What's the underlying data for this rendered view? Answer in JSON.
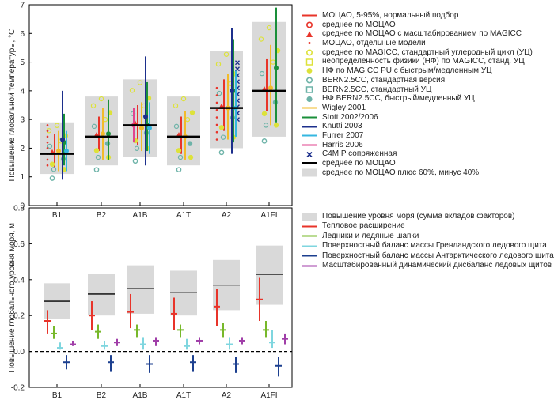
{
  "chart_data": [
    {
      "type": "scatter",
      "title": "",
      "ylabel": "Повышение глобальной температуры, °C",
      "ylim": [
        0,
        7
      ],
      "yticks": [
        0,
        1,
        2,
        3,
        4,
        5,
        6,
        7
      ],
      "categories": [
        "B1",
        "B2",
        "A1B",
        "A1T",
        "A2",
        "A1FI"
      ],
      "mean": [
        1.8,
        2.4,
        2.8,
        2.4,
        3.4,
        4.0
      ],
      "range_low": [
        1.1,
        1.4,
        1.7,
        1.4,
        2.0,
        2.4
      ],
      "range_high": [
        2.9,
        3.8,
        4.4,
        3.8,
        5.4,
        6.4
      ],
      "magicc_5_95": [
        {
          "low": 1.3,
          "high": 2.5
        },
        {
          "low": 1.9,
          "high": 3.1
        },
        {
          "low": 2.1,
          "high": 3.5
        },
        {
          "low": 1.8,
          "high": 3.1
        },
        {
          "low": 2.6,
          "high": 4.4
        },
        {
          "low": 3.3,
          "high": 5.1
        }
      ],
      "series": [
        {
          "name": "Wigley 2001",
          "color": "#f2bb2a",
          "values": [
            {
              "cat": "B1",
              "low": 1.2,
              "high": 2.6,
              "mid": 1.9
            },
            {
              "cat": "B2",
              "low": 1.6,
              "high": 3.4,
              "mid": 2.5
            },
            {
              "cat": "A1B",
              "low": 1.9,
              "high": 3.6,
              "mid": 2.7
            },
            {
              "cat": "A1T",
              "low": 1.6,
              "high": 3.3,
              "mid": 2.4
            },
            {
              "cat": "A2",
              "low": 2.3,
              "high": 4.6,
              "mid": 3.4
            },
            {
              "cat": "A1FI",
              "low": 2.8,
              "high": 5.6,
              "mid": 4.1
            }
          ]
        },
        {
          "name": "Stott 2002/2006",
          "color": "#1a8f3a",
          "values": [
            {
              "cat": "B1",
              "low": 1.4,
              "high": 3.2,
              "mid": 2.2
            },
            {
              "cat": "B2",
              "low": 1.6,
              "high": 3.7,
              "mid": 2.5
            },
            {
              "cat": "A1B",
              "low": 1.9,
              "high": 4.3,
              "mid": 2.8
            },
            {
              "cat": "A2",
              "low": 2.2,
              "high": 5.8,
              "mid": 4.0
            },
            {
              "cat": "A1FI",
              "low": 2.9,
              "high": 6.9,
              "mid": 4.8
            }
          ]
        },
        {
          "name": "Knutti 2003",
          "color": "#1c2f8c",
          "values": [
            {
              "cat": "B1",
              "low": 0.9,
              "high": 4.0,
              "mid": 2.3
            },
            {
              "cat": "A1B",
              "low": 1.4,
              "high": 5.2,
              "mid": 3.1
            },
            {
              "cat": "A2",
              "low": 1.8,
              "high": 6.2,
              "mid": 4.0
            }
          ]
        },
        {
          "name": "Furrer 2007",
          "color": "#35b7e0",
          "values": [
            {
              "cat": "B1",
              "low": 1.2,
              "high": 2.6,
              "mid": 1.9
            },
            {
              "cat": "A1B",
              "low": 1.8,
              "high": 3.6,
              "mid": 2.7
            },
            {
              "cat": "A2",
              "low": 2.4,
              "high": 4.7,
              "mid": 3.4
            }
          ]
        },
        {
          "name": "Harris 2006",
          "color": "#e0458f",
          "values": [
            {
              "cat": "A1B",
              "low": 2.2,
              "high": 3.4,
              "mid": 2.8
            }
          ]
        }
      ],
      "legend": [
        "МОЦАО, 5-95%, нормальный подбор",
        "среднее по МОЦАО",
        "среднее по МОЦАО с масштабированием по MAGICC",
        "МОЦАО, отдельные модели",
        "среднее по MAGICC, стандартный углеродный цикл (УЦ)",
        "неопределенность физики (НФ) по MAGICC, станд. УЦ",
        "НФ по MAGICC PU с быстрым/медленным УЦ",
        "BERN2.5CC, стандартная версия",
        "BERN2.5CC, стандартный УЦ",
        "НФ BERN2.5CC, быстрый/медленный УЦ",
        "Wigley 2001",
        "Stott 2002/2006",
        "Knutti 2003",
        "Furrer 2007",
        "Harris 2006",
        "C4MIP сопряженная",
        "среднее по МОЦАО",
        "среднее по МОЦАО плюс 60%, минус 40%"
      ]
    },
    {
      "type": "bar",
      "title": "",
      "ylabel": "Повышение глобального уровня моря, м",
      "ylim": [
        -0.2,
        0.8
      ],
      "yticks": [
        -0.2,
        0.0,
        0.2,
        0.4,
        0.6,
        0.8
      ],
      "categories": [
        "B1",
        "B2",
        "A1B",
        "A1T",
        "A2",
        "A1FI"
      ],
      "total": [
        {
          "low": 0.18,
          "high": 0.38,
          "mid": 0.28
        },
        {
          "low": 0.2,
          "high": 0.43,
          "mid": 0.32
        },
        {
          "low": 0.21,
          "high": 0.48,
          "mid": 0.35
        },
        {
          "low": 0.2,
          "high": 0.45,
          "mid": 0.33
        },
        {
          "low": 0.23,
          "high": 0.51,
          "mid": 0.37
        },
        {
          "low": 0.26,
          "high": 0.59,
          "mid": 0.43
        }
      ],
      "series": [
        {
          "name": "Тепловое расширение",
          "color": "#e8342a",
          "values": [
            {
              "low": 0.1,
              "high": 0.23,
              "mid": 0.17
            },
            {
              "low": 0.12,
              "high": 0.28,
              "mid": 0.2
            },
            {
              "low": 0.13,
              "high": 0.32,
              "mid": 0.22
            },
            {
              "low": 0.12,
              "high": 0.3,
              "mid": 0.21
            },
            {
              "low": 0.14,
              "high": 0.35,
              "mid": 0.25
            },
            {
              "low": 0.17,
              "high": 0.41,
              "mid": 0.29
            }
          ]
        },
        {
          "name": "Ледники и ледяные шапки",
          "color": "#77b82a",
          "values": [
            {
              "low": 0.07,
              "high": 0.14,
              "mid": 0.1
            },
            {
              "low": 0.07,
              "high": 0.15,
              "mid": 0.11
            },
            {
              "low": 0.08,
              "high": 0.15,
              "mid": 0.12
            },
            {
              "low": 0.08,
              "high": 0.15,
              "mid": 0.12
            },
            {
              "low": 0.08,
              "high": 0.16,
              "mid": 0.12
            },
            {
              "low": 0.08,
              "high": 0.17,
              "mid": 0.12
            }
          ]
        },
        {
          "name": "Поверхностный баланс массы Гренландского ледового щита",
          "color": "#7fd6df",
          "values": [
            {
              "low": 0.01,
              "high": 0.05,
              "mid": 0.02
            },
            {
              "low": 0.01,
              "high": 0.06,
              "mid": 0.03
            },
            {
              "low": 0.01,
              "high": 0.08,
              "mid": 0.04
            },
            {
              "low": 0.01,
              "high": 0.07,
              "mid": 0.03
            },
            {
              "low": 0.01,
              "high": 0.08,
              "mid": 0.04
            },
            {
              "low": 0.02,
              "high": 0.12,
              "mid": 0.05
            }
          ]
        },
        {
          "name": "Поверхностный баланс массы Антарктического ледового щита",
          "color": "#1c3f8f",
          "values": [
            {
              "low": -0.1,
              "high": -0.02,
              "mid": -0.06
            },
            {
              "low": -0.11,
              "high": -0.02,
              "mid": -0.06
            },
            {
              "low": -0.12,
              "high": -0.02,
              "mid": -0.07
            },
            {
              "low": -0.11,
              "high": -0.02,
              "mid": -0.06
            },
            {
              "low": -0.12,
              "high": -0.03,
              "mid": -0.07
            },
            {
              "low": -0.14,
              "high": -0.03,
              "mid": -0.08
            }
          ]
        },
        {
          "name": "Масштабированный динамический дисбаланс ледовых щитов",
          "color": "#a03ea8",
          "values": [
            {
              "low": 0.03,
              "high": 0.06,
              "mid": 0.04
            },
            {
              "low": 0.03,
              "high": 0.07,
              "mid": 0.05
            },
            {
              "low": 0.03,
              "high": 0.08,
              "mid": 0.06
            },
            {
              "low": 0.04,
              "high": 0.08,
              "mid": 0.06
            },
            {
              "low": 0.04,
              "high": 0.08,
              "mid": 0.06
            },
            {
              "low": 0.04,
              "high": 0.1,
              "mid": 0.07
            }
          ]
        }
      ],
      "legend": [
        "Повышение уровня моря (сумма вкладов факторов)",
        "Тепловое расширение",
        "Ледники и ледяные шапки",
        "Поверхностный баланс массы Гренландского ледового щита",
        "Поверхностный баланс массы Антарктического ледового щита",
        "Масштабированный динамический дисбаланс ледовых щитов"
      ]
    }
  ]
}
